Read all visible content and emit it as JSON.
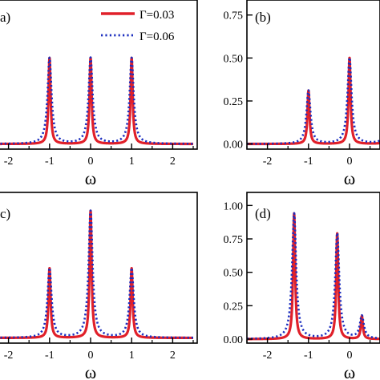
{
  "colors": {
    "series_solid": "#e0202a",
    "series_dotted": "#1c2fbf",
    "axis": "#000000"
  },
  "legend": {
    "entries": [
      {
        "label": "Γ=0.03",
        "style": "solid",
        "color": "#e0202a"
      },
      {
        "label": "Γ=0.06",
        "style": "dotted",
        "color": "#1c2fbf"
      }
    ]
  },
  "chart_data": [
    {
      "panel": "a",
      "label": "a)",
      "type": "line",
      "xlabel": "ω",
      "ylabel": "",
      "xlim": [
        -2.5,
        2.5
      ],
      "ylim": [
        -0.03,
        0.8
      ],
      "xticks": [
        -2,
        -1,
        0,
        1,
        2
      ],
      "yticks": [],
      "peaks": [
        {
          "x": -1,
          "y": 0.5
        },
        {
          "x": 0,
          "y": 0.5
        },
        {
          "x": 1,
          "y": 0.5
        }
      ],
      "series": [
        {
          "name": "Γ=0.03",
          "gamma": 0.03
        },
        {
          "name": "Γ=0.06",
          "gamma": 0.06
        }
      ]
    },
    {
      "panel": "b",
      "label": "(b)",
      "type": "line",
      "xlabel": "ω",
      "ylabel": "",
      "xlim": [
        -2.5,
        2.5
      ],
      "ylim": [
        -0.03,
        0.8
      ],
      "xticks": [
        -2,
        -1,
        0
      ],
      "yticks": [
        0.0,
        0.25,
        0.5,
        0.75
      ],
      "ytick_labels": [
        "0.00",
        "0.25",
        "0.50",
        "0.75"
      ],
      "peaks": [
        {
          "x": -1,
          "y": 0.31
        },
        {
          "x": 0,
          "y": 0.5
        },
        {
          "x": 1,
          "y": 0.31
        }
      ],
      "series": [
        {
          "name": "Γ=0.03",
          "gamma": 0.03
        },
        {
          "name": "Γ=0.06",
          "gamma": 0.06
        }
      ]
    },
    {
      "panel": "c",
      "label": "c)",
      "type": "line",
      "xlabel": "ω",
      "ylabel": "",
      "xlim": [
        -2.5,
        2.5
      ],
      "ylim": [
        -0.03,
        0.8
      ],
      "xticks": [
        -2,
        -1,
        0,
        1,
        2
      ],
      "yticks": [],
      "peaks": [
        {
          "x": -1,
          "y": 0.4
        },
        {
          "x": 0,
          "y": 0.73
        },
        {
          "x": 1,
          "y": 0.4
        }
      ],
      "series": [
        {
          "name": "Γ=0.03",
          "gamma": 0.03
        },
        {
          "name": "Γ=0.06",
          "gamma": 0.06
        }
      ]
    },
    {
      "panel": "d",
      "label": "(d)",
      "type": "line",
      "xlabel": "ω",
      "ylabel": "",
      "xlim": [
        -2.5,
        2.5
      ],
      "ylim": [
        -0.03,
        1.05
      ],
      "xticks": [
        -2,
        -1,
        0
      ],
      "yticks": [
        0.0,
        0.25,
        0.5,
        0.75,
        1.0
      ],
      "ytick_labels": [
        "0.00",
        "0.25",
        "0.50",
        "0.75",
        "1.00"
      ],
      "peaks": [
        {
          "x": -1.35,
          "y": 0.94
        },
        {
          "x": -0.3,
          "y": 0.79
        },
        {
          "x": 0.3,
          "y": 0.17
        }
      ],
      "series": [
        {
          "name": "Γ=0.03",
          "gamma": 0.03
        },
        {
          "name": "Γ=0.06",
          "gamma": 0.06
        }
      ]
    }
  ]
}
